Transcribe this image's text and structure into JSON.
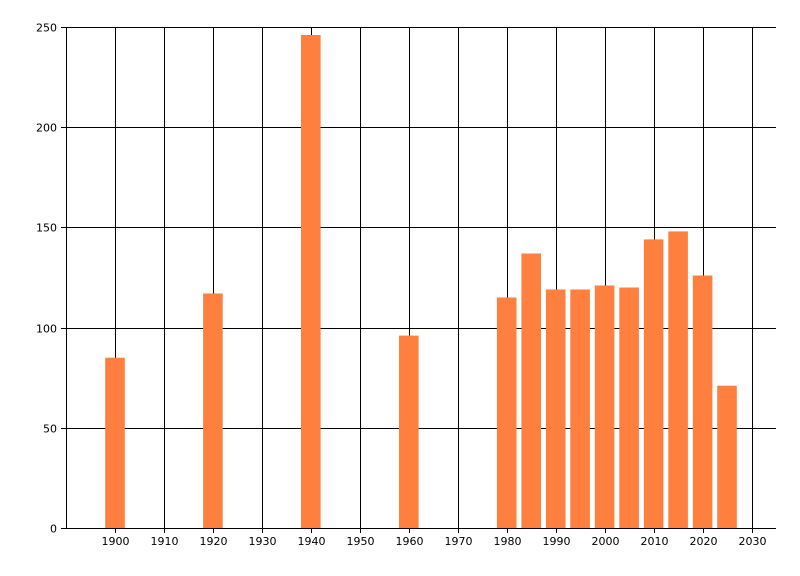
{
  "chart_data": {
    "type": "bar",
    "title": "",
    "xlabel": "",
    "ylabel": "",
    "x": [
      1900,
      1920,
      1940,
      1960,
      1980,
      1985,
      1990,
      1995,
      2000,
      2005,
      2010,
      2015,
      2020,
      2025
    ],
    "values": [
      85,
      117,
      246,
      96,
      115,
      137,
      119,
      119,
      121,
      120,
      144,
      148,
      126,
      71
    ],
    "xlim": [
      1890,
      2035
    ],
    "ylim": [
      0,
      250
    ],
    "xticks": [
      "1900",
      "1910",
      "1920",
      "1930",
      "1940",
      "1950",
      "1960",
      "1970",
      "1980",
      "1990",
      "2000",
      "2010",
      "2020",
      "2030"
    ],
    "yticks": [
      "0",
      "50",
      "100",
      "150",
      "200",
      "250"
    ],
    "grid": true,
    "bar_color": "#ff7f3f",
    "grid_color": "#000000"
  }
}
